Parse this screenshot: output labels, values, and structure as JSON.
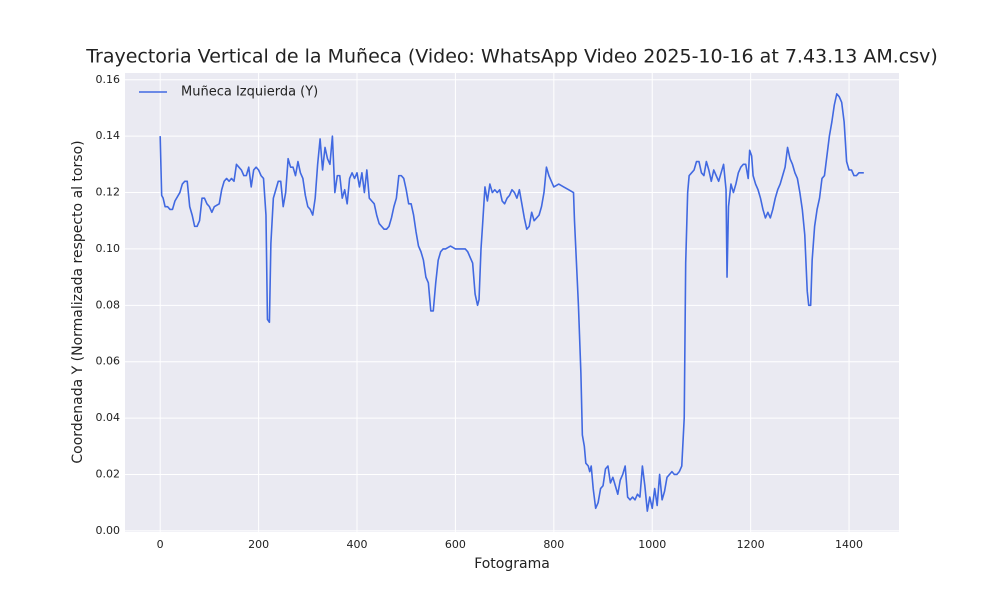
{
  "chart_data": {
    "type": "line",
    "title": "Trayectoria Vertical de la Muñeca (Video: WhatsApp Video 2025-10-16 at 7.43.13 AM.csv)",
    "xlabel": "Fotograma",
    "ylabel": "Coordenada Y (Normalizada respecto al torso)",
    "xlim": [
      -71.5,
      1501.5
    ],
    "ylim": [
      -0.0004,
      0.1624
    ],
    "xticks": [
      0,
      200,
      400,
      600,
      800,
      1000,
      1200,
      1400
    ],
    "yticks": [
      {
        "value": 0,
        "label": "0.00"
      },
      {
        "value": 0.02,
        "label": "0.02"
      },
      {
        "value": 0.04,
        "label": "0.04"
      },
      {
        "value": 0.06,
        "label": "0.06"
      },
      {
        "value": 0.08,
        "label": "0.08"
      },
      {
        "value": 0.1,
        "label": "0.10"
      },
      {
        "value": 0.12,
        "label": "0.12"
      },
      {
        "value": 0.14,
        "label": "0.14"
      },
      {
        "value": 0.16,
        "label": "0.16"
      }
    ],
    "grid": true,
    "legend": "upper left",
    "x": [
      0,
      3,
      6,
      10,
      15,
      20,
      25,
      30,
      40,
      45,
      50,
      55,
      60,
      65,
      70,
      75,
      80,
      85,
      90,
      95,
      100,
      105,
      110,
      120,
      125,
      130,
      135,
      140,
      145,
      150,
      155,
      160,
      165,
      170,
      175,
      180,
      185,
      190,
      195,
      200,
      205,
      210,
      215,
      218,
      222,
      225,
      230,
      235,
      240,
      245,
      250,
      255,
      260,
      265,
      270,
      275,
      280,
      285,
      290,
      295,
      300,
      305,
      310,
      315,
      320,
      325,
      330,
      335,
      340,
      345,
      350,
      355,
      360,
      365,
      370,
      375,
      380,
      385,
      390,
      395,
      400,
      405,
      410,
      415,
      420,
      425,
      430,
      435,
      440,
      445,
      450,
      455,
      460,
      465,
      470,
      475,
      480,
      485,
      490,
      495,
      500,
      505,
      510,
      515,
      520,
      525,
      530,
      535,
      540,
      545,
      550,
      555,
      560,
      565,
      570,
      575,
      580,
      590,
      600,
      610,
      620,
      625,
      630,
      635,
      640,
      645,
      648,
      652,
      655,
      660,
      665,
      670,
      675,
      680,
      685,
      690,
      695,
      700,
      705,
      710,
      715,
      720,
      725,
      730,
      735,
      740,
      745,
      750,
      755,
      760,
      765,
      770,
      775,
      780,
      785,
      790,
      795,
      800,
      810,
      820,
      830,
      840,
      842,
      850,
      855,
      858,
      862,
      865,
      870,
      873,
      876,
      880,
      885,
      890,
      895,
      900,
      905,
      910,
      915,
      920,
      925,
      930,
      935,
      940,
      945,
      950,
      955,
      960,
      965,
      970,
      975,
      980,
      985,
      990,
      995,
      1000,
      1005,
      1010,
      1015,
      1020,
      1025,
      1030,
      1035,
      1040,
      1045,
      1050,
      1055,
      1060,
      1065,
      1068,
      1072,
      1075,
      1080,
      1085,
      1090,
      1095,
      1100,
      1105,
      1110,
      1115,
      1120,
      1125,
      1130,
      1135,
      1140,
      1145,
      1150,
      1152,
      1155,
      1160,
      1165,
      1170,
      1175,
      1180,
      1185,
      1190,
      1195,
      1198,
      1202,
      1205,
      1210,
      1215,
      1220,
      1225,
      1230,
      1235,
      1240,
      1245,
      1250,
      1255,
      1260,
      1265,
      1270,
      1275,
      1280,
      1285,
      1290,
      1295,
      1300,
      1305,
      1310,
      1315,
      1318,
      1322,
      1325,
      1330,
      1335,
      1340,
      1345,
      1350,
      1355,
      1360,
      1365,
      1370,
      1375,
      1380,
      1385,
      1390,
      1395,
      1400,
      1405,
      1410,
      1415,
      1420,
      1425,
      1430
    ],
    "series": [
      {
        "name": "Muñeca Izquierda (Y)",
        "color": "#4169e1",
        "values": [
          0.14,
          0.119,
          0.118,
          0.115,
          0.115,
          0.114,
          0.114,
          0.117,
          0.12,
          0.123,
          0.124,
          0.124,
          0.115,
          0.112,
          0.108,
          0.108,
          0.11,
          0.118,
          0.118,
          0.116,
          0.115,
          0.113,
          0.115,
          0.116,
          0.121,
          0.124,
          0.125,
          0.124,
          0.125,
          0.124,
          0.13,
          0.129,
          0.128,
          0.126,
          0.126,
          0.129,
          0.122,
          0.128,
          0.129,
          0.128,
          0.126,
          0.125,
          0.112,
          0.075,
          0.074,
          0.102,
          0.118,
          0.121,
          0.124,
          0.124,
          0.115,
          0.12,
          0.132,
          0.129,
          0.129,
          0.126,
          0.131,
          0.127,
          0.125,
          0.119,
          0.115,
          0.114,
          0.112,
          0.118,
          0.13,
          0.139,
          0.128,
          0.136,
          0.132,
          0.13,
          0.14,
          0.12,
          0.126,
          0.126,
          0.118,
          0.121,
          0.116,
          0.125,
          0.127,
          0.125,
          0.127,
          0.122,
          0.127,
          0.12,
          0.128,
          0.118,
          0.117,
          0.116,
          0.112,
          0.109,
          0.108,
          0.107,
          0.107,
          0.108,
          0.111,
          0.115,
          0.118,
          0.126,
          0.126,
          0.125,
          0.121,
          0.116,
          0.116,
          0.112,
          0.106,
          0.101,
          0.099,
          0.096,
          0.09,
          0.088,
          0.078,
          0.078,
          0.088,
          0.096,
          0.099,
          0.1,
          0.1,
          0.101,
          0.1,
          0.1,
          0.1,
          0.099,
          0.097,
          0.095,
          0.084,
          0.08,
          0.082,
          0.1,
          0.108,
          0.122,
          0.117,
          0.123,
          0.12,
          0.121,
          0.12,
          0.121,
          0.117,
          0.116,
          0.118,
          0.119,
          0.121,
          0.12,
          0.118,
          0.121,
          0.116,
          0.111,
          0.107,
          0.108,
          0.113,
          0.11,
          0.111,
          0.112,
          0.115,
          0.12,
          0.129,
          0.126,
          0.124,
          0.122,
          0.123,
          0.122,
          0.121,
          0.12,
          0.11,
          0.08,
          0.056,
          0.034,
          0.03,
          0.024,
          0.023,
          0.021,
          0.023,
          0.015,
          0.008,
          0.01,
          0.015,
          0.016,
          0.022,
          0.023,
          0.017,
          0.019,
          0.016,
          0.013,
          0.018,
          0.02,
          0.023,
          0.012,
          0.011,
          0.012,
          0.011,
          0.013,
          0.012,
          0.023,
          0.016,
          0.007,
          0.012,
          0.008,
          0.015,
          0.009,
          0.02,
          0.011,
          0.014,
          0.019,
          0.02,
          0.021,
          0.02,
          0.02,
          0.021,
          0.023,
          0.04,
          0.095,
          0.12,
          0.126,
          0.127,
          0.128,
          0.131,
          0.131,
          0.127,
          0.126,
          0.131,
          0.128,
          0.124,
          0.128,
          0.126,
          0.124,
          0.127,
          0.13,
          0.121,
          0.09,
          0.115,
          0.123,
          0.12,
          0.123,
          0.127,
          0.129,
          0.13,
          0.13,
          0.125,
          0.135,
          0.133,
          0.126,
          0.123,
          0.121,
          0.118,
          0.114,
          0.111,
          0.113,
          0.111,
          0.114,
          0.118,
          0.121,
          0.123,
          0.126,
          0.129,
          0.136,
          0.132,
          0.13,
          0.127,
          0.125,
          0.12,
          0.114,
          0.105,
          0.085,
          0.08,
          0.08,
          0.096,
          0.108,
          0.114,
          0.118,
          0.125,
          0.126,
          0.133,
          0.14,
          0.145,
          0.151,
          0.155,
          0.154,
          0.152,
          0.145,
          0.131,
          0.128,
          0.128,
          0.126,
          0.126,
          0.127,
          0.127,
          0.127
        ]
      }
    ]
  }
}
